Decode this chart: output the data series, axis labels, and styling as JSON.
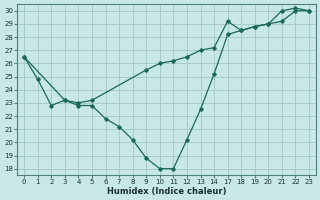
{
  "xlabel": "Humidex (Indice chaleur)",
  "background_color": "#c8e8e8",
  "grid_color": "#a8cccc",
  "line_color": "#1a6858",
  "xlabels": [
    "0",
    "1",
    "2",
    "3",
    "4",
    "5",
    "6",
    "7",
    "8",
    "9",
    "10",
    "11",
    "12",
    "13",
    "14",
    "17",
    "18",
    "19",
    "20",
    "21",
    "22",
    "23"
  ],
  "line1_xi": [
    0,
    1,
    2,
    3,
    4,
    5,
    6,
    7,
    8,
    9,
    10,
    11,
    12,
    13,
    14,
    15,
    16,
    17,
    18,
    19,
    20,
    21
  ],
  "line1_y": [
    26.5,
    24.8,
    22.8,
    23.2,
    22.8,
    22.8,
    21.8,
    21.2,
    20.2,
    18.8,
    18.0,
    18.0,
    20.2,
    22.5,
    25.2,
    28.2,
    28.5,
    28.8,
    29.0,
    30.0,
    30.2,
    30.0
  ],
  "line2_xi": [
    0,
    3,
    4,
    5,
    9,
    10,
    11,
    12,
    13,
    14,
    15,
    16,
    17,
    18,
    19,
    20,
    21
  ],
  "line2_y": [
    26.5,
    23.2,
    23.0,
    23.2,
    25.5,
    26.0,
    26.2,
    26.5,
    27.0,
    27.2,
    29.2,
    28.5,
    28.8,
    29.0,
    29.2,
    30.0,
    30.0
  ],
  "ylim": [
    17.5,
    30.5
  ],
  "xlim": [
    -0.5,
    21.5
  ],
  "yticks": [
    18,
    19,
    20,
    21,
    22,
    23,
    24,
    25,
    26,
    27,
    28,
    29,
    30
  ],
  "xtick_positions": [
    0,
    1,
    2,
    3,
    4,
    5,
    6,
    7,
    8,
    9,
    10,
    11,
    12,
    13,
    14,
    15,
    16,
    17,
    18,
    19,
    20,
    21
  ]
}
